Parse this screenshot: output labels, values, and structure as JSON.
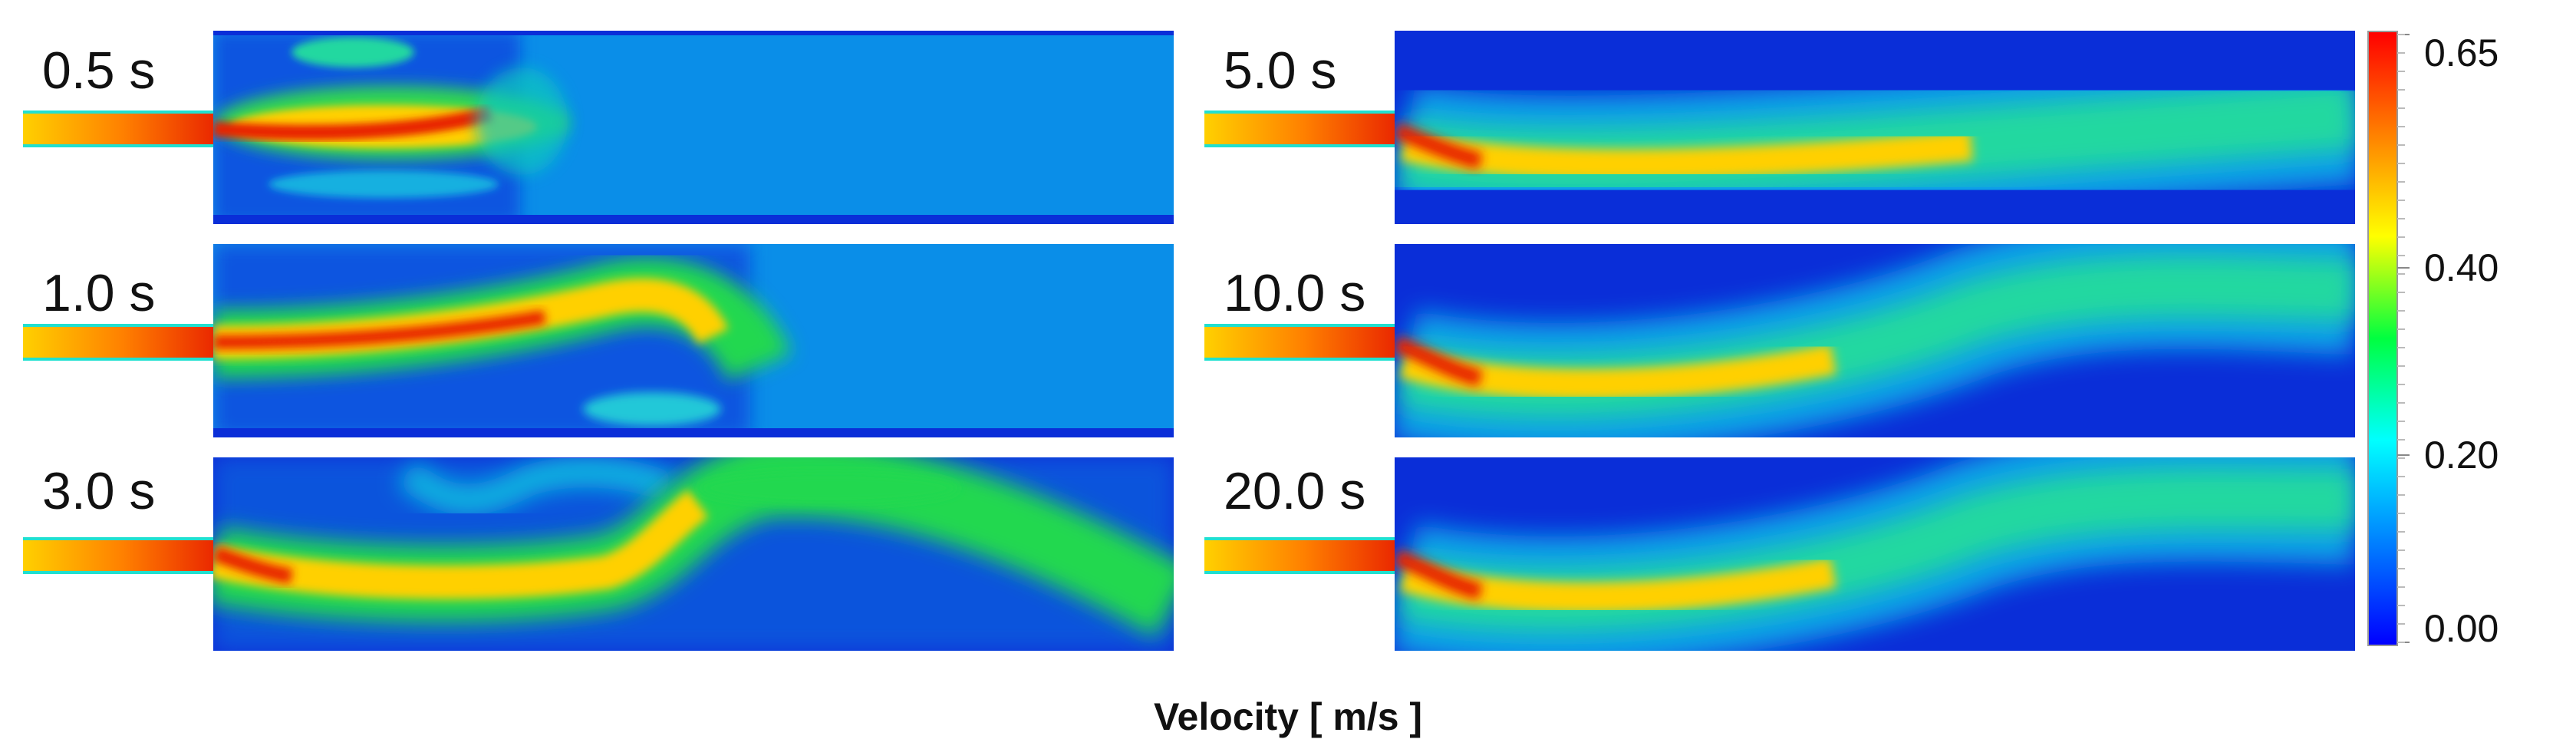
{
  "panels": [
    {
      "time_label": "0.5 s"
    },
    {
      "time_label": "1.0 s"
    },
    {
      "time_label": "3.0 s"
    },
    {
      "time_label": "5.0 s"
    },
    {
      "time_label": "10.0 s"
    },
    {
      "time_label": "20.0 s"
    }
  ],
  "colorbar": {
    "title": "Velocity [ m/s ]",
    "ticks": [
      "0.65",
      "0.40",
      "0.20",
      "0.00"
    ],
    "colors": [
      "#ff0000",
      "#ff8000",
      "#ffff00",
      "#00ff40",
      "#00ffff",
      "#0080ff",
      "#0000ff"
    ]
  },
  "colors": {
    "background_field": "#0a8ee8",
    "dark_blue": "#0a2ed8",
    "jet_core": "#e82000",
    "jet_mid": "#ffd000",
    "jet_outer": "#20e030"
  }
}
